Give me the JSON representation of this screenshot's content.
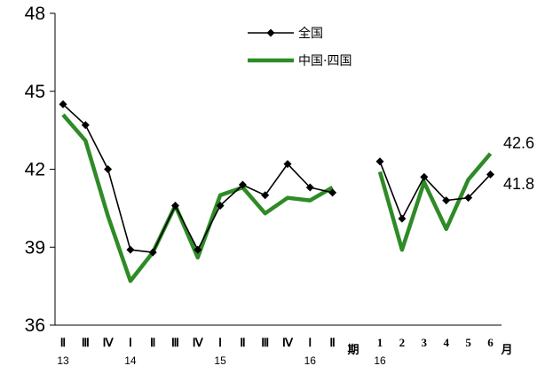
{
  "chart_data": {
    "type": "line",
    "ylim": [
      36,
      48
    ],
    "yticks": [
      "36",
      "39",
      "42",
      "45",
      "48"
    ],
    "segments": [
      {
        "categories": [
          "Ⅱ",
          "Ⅲ",
          "Ⅳ",
          "Ⅰ",
          "Ⅱ",
          "Ⅲ",
          "Ⅳ",
          "Ⅰ",
          "Ⅱ",
          "Ⅲ",
          "Ⅳ",
          "Ⅰ",
          "Ⅱ"
        ],
        "year_labels": [
          {
            "index": 0,
            "label": "13"
          },
          {
            "index": 3,
            "label": "14"
          },
          {
            "index": 7,
            "label": "15"
          },
          {
            "index": 11,
            "label": "16"
          }
        ],
        "axis_unit": "期"
      },
      {
        "categories": [
          "1",
          "2",
          "3",
          "4",
          "5",
          "6"
        ],
        "year_labels": [
          {
            "index": 0,
            "label": "16"
          }
        ],
        "axis_unit": "月"
      }
    ],
    "series": [
      {
        "name": "全国",
        "color": "#000000",
        "marker": "diamond",
        "values": [
          [
            44.5,
            43.7,
            42.0,
            38.9,
            38.8,
            40.6,
            38.9,
            40.6,
            41.4,
            41.0,
            42.2,
            41.3,
            41.1
          ],
          [
            42.3,
            40.1,
            41.7,
            40.8,
            40.9,
            41.8
          ]
        ],
        "end_label": "41.8"
      },
      {
        "name": "中国·四国",
        "color": "#2e8b26",
        "marker": "none",
        "values": [
          [
            44.1,
            43.1,
            40.2,
            37.7,
            38.8,
            40.6,
            38.6,
            41.0,
            41.3,
            40.3,
            40.9,
            40.8,
            41.3
          ],
          [
            41.9,
            38.9,
            41.5,
            39.7,
            41.6,
            42.6
          ]
        ],
        "end_label": "42.6"
      }
    ]
  }
}
